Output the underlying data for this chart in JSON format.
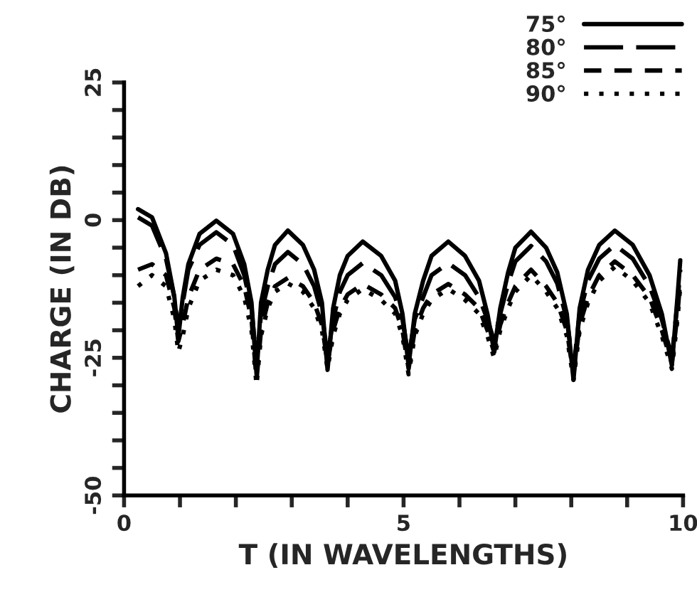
{
  "chart_data": {
    "type": "line",
    "xlabel": "T (IN WAVELENGTHS)",
    "ylabel": "CHARGE (IN DB)",
    "xlim": [
      0,
      10
    ],
    "ylim": [
      -50,
      25
    ],
    "xticks": [
      0,
      {
        "value": 1,
        "label": null
      },
      {
        "value": 2,
        "label": null
      },
      {
        "value": 3,
        "label": null
      },
      {
        "value": 4,
        "label": null
      },
      5,
      {
        "value": 6,
        "label": null
      },
      {
        "value": 7,
        "label": null
      },
      {
        "value": 8,
        "label": null
      },
      {
        "value": 9,
        "label": null
      },
      10
    ],
    "yticks": [
      -50,
      {
        "value": -45,
        "label": null
      },
      {
        "value": -40,
        "label": null
      },
      {
        "value": -35,
        "label": null
      },
      {
        "value": -30,
        "label": null
      },
      -25,
      {
        "value": -20,
        "label": null
      },
      {
        "value": -15,
        "label": null
      },
      {
        "value": -10,
        "label": null
      },
      {
        "value": -5,
        "label": null
      },
      0,
      {
        "value": 5,
        "label": null
      },
      {
        "value": 10,
        "label": null
      },
      {
        "value": 15,
        "label": null
      },
      {
        "value": 20,
        "label": null
      },
      25
    ],
    "grid": false,
    "legend": "top right",
    "marker": "none",
    "x": [
      0.25,
      0.5,
      0.75,
      0.9,
      0.97,
      1.05,
      1.15,
      1.35,
      1.65,
      1.95,
      2.15,
      2.28,
      2.37,
      2.45,
      2.57,
      2.7,
      2.93,
      3.2,
      3.4,
      3.54,
      3.64,
      3.74,
      3.86,
      4.0,
      4.27,
      4.6,
      4.85,
      4.98,
      5.09,
      5.2,
      5.35,
      5.5,
      5.8,
      6.1,
      6.35,
      6.5,
      6.62,
      6.73,
      6.87,
      7.0,
      7.28,
      7.55,
      7.75,
      7.92,
      8.04,
      8.15,
      8.3,
      8.5,
      8.78,
      9.1,
      9.4,
      9.62,
      9.8,
      9.9,
      9.95
    ],
    "series": [
      {
        "name": "75°",
        "color": "#000000",
        "line_style": "solid",
        "values": [
          2.0,
          0.5,
          -6,
          -14,
          -21.3,
          -14,
          -8,
          -2.5,
          -0.1,
          -2.5,
          -8,
          -15,
          -28,
          -15,
          -9,
          -4.5,
          -1.9,
          -4.5,
          -9,
          -15,
          -27.2,
          -16,
          -10,
          -6.5,
          -3.9,
          -6.5,
          -11,
          -17,
          -26.4,
          -17,
          -11,
          -6.5,
          -3.9,
          -6.5,
          -11,
          -17,
          -23.8,
          -16,
          -9.5,
          -5,
          -2.1,
          -5,
          -9.5,
          -17,
          -29,
          -16,
          -9,
          -4.5,
          -1.9,
          -4.5,
          -10,
          -17,
          -26.4,
          -14,
          -7.3
        ]
      },
      {
        "name": "80°",
        "color": "#000000",
        "line_style": "longdashed",
        "values": [
          0.5,
          -1,
          -7,
          -14,
          -20,
          -15,
          -9,
          -4.5,
          -2.2,
          -4.5,
          -10,
          -16,
          -26,
          -17,
          -12,
          -8,
          -5.8,
          -8,
          -12,
          -17,
          -25,
          -18,
          -13,
          -10,
          -7.8,
          -10,
          -14,
          -18,
          -25,
          -18,
          -14,
          -10,
          -7.8,
          -10,
          -14,
          -18,
          -22,
          -17,
          -11.5,
          -7.5,
          -4.7,
          -7.5,
          -11.5,
          -18,
          -27,
          -17,
          -11,
          -7,
          -4.5,
          -7,
          -12,
          -18,
          -25,
          -15,
          -9
        ]
      },
      {
        "name": "85°",
        "color": "#000000",
        "line_style": "dashed",
        "values": [
          -9,
          -8,
          -10,
          -16,
          -22,
          -19,
          -14,
          -9,
          -7,
          -8,
          -12,
          -18,
          -29,
          -20,
          -15,
          -12,
          -10.5,
          -12,
          -15,
          -19,
          -26,
          -20,
          -16,
          -13.5,
          -11.6,
          -13.5,
          -16,
          -20,
          -27,
          -20,
          -16,
          -13.5,
          -11.6,
          -13.5,
          -16,
          -20,
          -24,
          -19,
          -15,
          -12,
          -9,
          -12,
          -15,
          -20,
          -28,
          -19,
          -14,
          -10,
          -7.5,
          -10,
          -14,
          -20,
          -26,
          -17,
          -11
        ]
      },
      {
        "name": "90°",
        "color": "#000000",
        "line_style": "dotted",
        "values": [
          -12,
          -10,
          -12,
          -18,
          -24,
          -21,
          -16,
          -11,
          -9,
          -10,
          -14,
          -20,
          -30,
          -21,
          -16,
          -13,
          -11.5,
          -13,
          -16,
          -20,
          -27,
          -21,
          -17,
          -14.5,
          -12.5,
          -14.5,
          -17,
          -21,
          -28,
          -21,
          -17,
          -14.5,
          -12.5,
          -14.5,
          -17,
          -21,
          -25,
          -20,
          -16,
          -13,
          -10,
          -13,
          -16,
          -21,
          -29,
          -20,
          -15,
          -11,
          -8.5,
          -11,
          -15,
          -21,
          -27,
          -18,
          -12
        ]
      }
    ]
  }
}
